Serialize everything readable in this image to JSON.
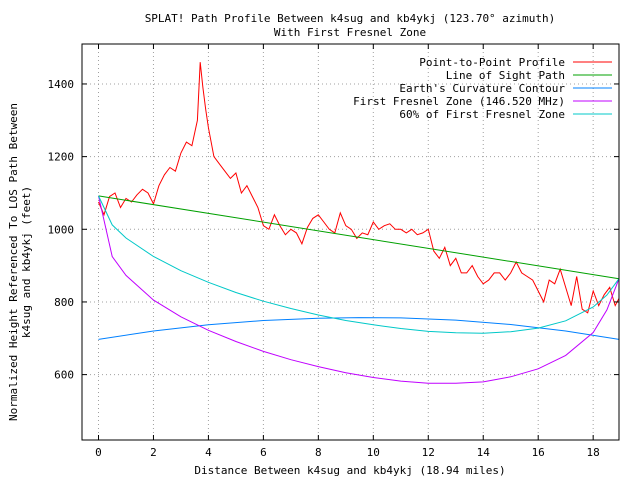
{
  "chart_data": {
    "type": "line",
    "title": "SPLAT! Path Profile Between k4sug and kb4ykj (123.70° azimuth)",
    "subtitle": "With First Fresnel Zone",
    "xlabel": "Distance Between k4sug and kb4ykj (18.94 miles)",
    "ylabel_line1": "Normalized Height Referenced To LOS Path Between",
    "ylabel_line2": "k4sug and kb4ykj (feet)",
    "xlim": [
      -0.6,
      18.94
    ],
    "ylim": [
      420,
      1510
    ],
    "x_ticks": [
      0,
      2,
      4,
      6,
      8,
      10,
      12,
      14,
      16,
      18
    ],
    "y_ticks": [
      600,
      800,
      1000,
      1200,
      1400
    ],
    "grid": true,
    "legend_position": "top-right",
    "series": [
      {
        "name": "Point-to-Point Profile",
        "color": "#ff0000",
        "x": [
          0.0,
          0.2,
          0.4,
          0.6,
          0.8,
          1.0,
          1.2,
          1.4,
          1.6,
          1.8,
          2.0,
          2.2,
          2.4,
          2.6,
          2.8,
          3.0,
          3.2,
          3.4,
          3.6,
          3.7,
          3.8,
          3.9,
          4.0,
          4.2,
          4.4,
          4.6,
          4.8,
          5.0,
          5.2,
          5.4,
          5.6,
          5.8,
          6.0,
          6.2,
          6.4,
          6.6,
          6.8,
          7.0,
          7.2,
          7.4,
          7.6,
          7.8,
          8.0,
          8.2,
          8.4,
          8.6,
          8.8,
          9.0,
          9.2,
          9.4,
          9.6,
          9.8,
          10.0,
          10.2,
          10.4,
          10.6,
          10.8,
          11.0,
          11.2,
          11.4,
          11.6,
          11.8,
          12.0,
          12.2,
          12.4,
          12.6,
          12.8,
          13.0,
          13.2,
          13.4,
          13.6,
          13.8,
          14.0,
          14.2,
          14.4,
          14.6,
          14.8,
          15.0,
          15.2,
          15.4,
          15.6,
          15.8,
          16.0,
          16.2,
          16.4,
          16.6,
          16.8,
          17.0,
          17.2,
          17.4,
          17.6,
          17.8,
          18.0,
          18.2,
          18.4,
          18.6,
          18.8,
          18.94
        ],
        "y": [
          1075,
          1040,
          1090,
          1100,
          1060,
          1085,
          1075,
          1095,
          1110,
          1100,
          1070,
          1120,
          1150,
          1170,
          1160,
          1210,
          1240,
          1230,
          1300,
          1460,
          1390,
          1330,
          1280,
          1200,
          1180,
          1160,
          1140,
          1155,
          1100,
          1120,
          1090,
          1060,
          1010,
          1000,
          1040,
          1010,
          985,
          1000,
          990,
          960,
          1005,
          1030,
          1040,
          1020,
          1000,
          990,
          1045,
          1010,
          1000,
          975,
          990,
          985,
          1020,
          1000,
          1010,
          1015,
          1000,
          1000,
          990,
          1000,
          985,
          990,
          1000,
          940,
          920,
          950,
          900,
          920,
          880,
          880,
          900,
          870,
          850,
          860,
          880,
          880,
          860,
          880,
          910,
          880,
          870,
          860,
          830,
          800,
          860,
          850,
          890,
          840,
          790,
          870,
          780,
          770,
          830,
          790,
          820,
          840,
          790,
          810
        ]
      },
      {
        "name": "Line of Sight Path",
        "color": "#00a000",
        "x": [
          0,
          18.94
        ],
        "y": [
          1092,
          864
        ]
      },
      {
        "name": "Earth's Curvature Contour",
        "color": "#0080ff",
        "x": [
          0,
          2,
          4,
          6,
          8,
          9.47,
          11,
          13,
          15,
          17,
          18.94
        ],
        "y": [
          697,
          720,
          737,
          749,
          755,
          757,
          756,
          750,
          738,
          720,
          697
        ]
      },
      {
        "name": "First Fresnel Zone (146.520 MHz)",
        "color": "#c000ff",
        "x": [
          0,
          0.5,
          1,
          2,
          3,
          4,
          5,
          6,
          7,
          8,
          9,
          10,
          11,
          12,
          13,
          14,
          15,
          16,
          17,
          18,
          18.5,
          18.94
        ],
        "y": [
          1092,
          925,
          873,
          805,
          759,
          722,
          691,
          664,
          641,
          622,
          605,
          592,
          582,
          576,
          576,
          580,
          594,
          616,
          653,
          716,
          778,
          864
        ]
      },
      {
        "name": "60% of First Fresnel Zone",
        "color": "#00c8c8",
        "x": [
          0,
          0.5,
          1,
          2,
          3,
          4,
          5,
          6,
          7,
          8,
          9,
          10,
          11,
          12,
          13,
          14,
          15,
          16,
          17,
          18,
          18.5,
          18.94
        ],
        "y": [
          1092,
          1012,
          976,
          925,
          886,
          854,
          826,
          802,
          782,
          764,
          749,
          737,
          727,
          719,
          715,
          714,
          718,
          728,
          748,
          786,
          819,
          864
        ]
      }
    ]
  }
}
